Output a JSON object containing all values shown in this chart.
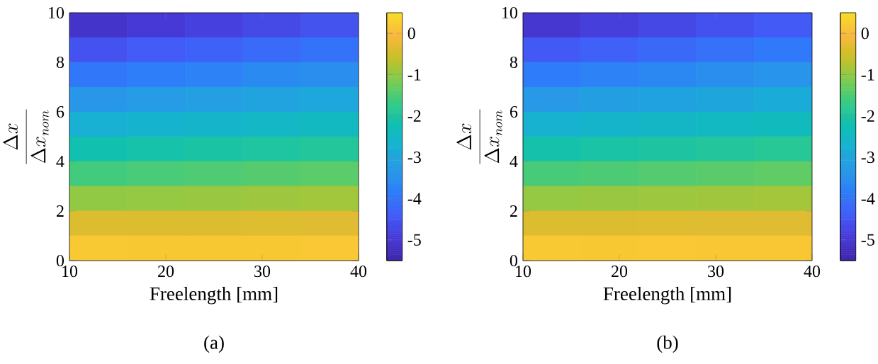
{
  "chart_data": [
    {
      "type": "heatmap",
      "xlabel": "Freelength [mm]",
      "ylabel": "\\frac{\\Delta x}{\\Delta x_{nom}}",
      "annotations": [
        "(a)"
      ],
      "xlim": [
        10,
        40
      ],
      "ylim": [
        0,
        10
      ],
      "xticks": [
        10,
        20,
        30,
        40
      ],
      "yticks": [
        0,
        2,
        4,
        6,
        8,
        10
      ],
      "clim": [
        -5.5,
        0.5
      ],
      "cticks": [
        -5,
        -4,
        -3,
        -2,
        -1,
        0
      ],
      "cells": [
        [
          -5.13,
          -4.99,
          -4.85,
          -4.7,
          -4.56
        ],
        [
          -4.54,
          -4.41,
          -4.29,
          -4.16,
          -4.03
        ],
        [
          -3.95,
          -3.84,
          -3.73,
          -3.62,
          -3.51
        ],
        [
          -3.35,
          -3.26,
          -3.17,
          -3.07,
          -2.98
        ],
        [
          -2.76,
          -2.68,
          -2.61,
          -2.53,
          -2.45
        ],
        [
          -2.17,
          -2.11,
          -2.05,
          -1.99,
          -1.93
        ],
        [
          -1.58,
          -1.53,
          -1.49,
          -1.44,
          -1.4
        ],
        [
          -0.99,
          -0.96,
          -0.93,
          -0.9,
          -0.87
        ],
        [
          -0.39,
          -0.38,
          -0.37,
          -0.36,
          -0.35
        ],
        [
          0.2,
          0.19,
          0.19,
          0.19,
          0.18
        ]
      ]
    },
    {
      "type": "heatmap",
      "xlabel": "Freelength [mm]",
      "ylabel": "\\frac{\\Delta x}{\\Delta x_{nom}}",
      "annotations": [
        "(b)"
      ],
      "xlim": [
        10,
        40
      ],
      "ylim": [
        0,
        10
      ],
      "xticks": [
        10,
        20,
        30,
        40
      ],
      "yticks": [
        0,
        2,
        4,
        6,
        8,
        10
      ],
      "clim": [
        -5.5,
        0.5
      ],
      "cticks": [
        -5,
        -4,
        -3,
        -2,
        -1,
        0
      ],
      "cells": [
        [
          -5.03,
          -4.88,
          -4.72,
          -4.57,
          -4.42
        ],
        [
          -4.45,
          -4.31,
          -4.18,
          -4.04,
          -3.91
        ],
        [
          -3.87,
          -3.75,
          -3.63,
          -3.52,
          -3.4
        ],
        [
          -3.29,
          -3.19,
          -3.09,
          -2.99,
          -2.89
        ],
        [
          -2.7,
          -2.62,
          -2.54,
          -2.46,
          -2.38
        ],
        [
          -2.12,
          -2.06,
          -2.0,
          -1.94,
          -1.87
        ],
        [
          -1.54,
          -1.5,
          -1.45,
          -1.41,
          -1.36
        ],
        [
          -0.96,
          -0.93,
          -0.91,
          -0.88,
          -0.85
        ],
        [
          -0.38,
          -0.37,
          -0.36,
          -0.35,
          -0.35
        ],
        [
          0.2,
          0.19,
          0.18,
          0.17,
          0.16
        ]
      ]
    }
  ]
}
